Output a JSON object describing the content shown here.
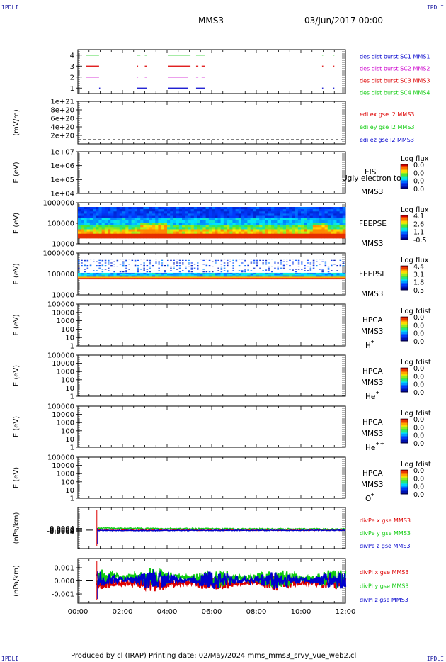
{
  "corner_label": "IPDLI",
  "header": {
    "spacecraft": "MMS3",
    "date": "03/Jun/2017 00:00"
  },
  "footer": {
    "text": "Produced by cl (IRAP)   Printing date: 02/May/2024   mms_mms3_srvy_vue_web2.cl"
  },
  "time_axis": {
    "range_hours": [
      0,
      12
    ],
    "tick_labels": [
      "00:00",
      "02:00",
      "04:00",
      "06:00",
      "08:00",
      "10:00",
      "12:00"
    ]
  },
  "colors": {
    "red": "#dd0000",
    "green": "#11cc11",
    "blue": "#0000cc",
    "magenta": "#cc00cc"
  },
  "chart_data": [
    {
      "type": "line",
      "panel": "burst_availability",
      "ylim": [
        0.5,
        4.5
      ],
      "yticks": [
        "1",
        "2",
        "3",
        "4"
      ],
      "legend": [
        {
          "text": "des dist burst SC1 MMS1",
          "color": "#0000cc"
        },
        {
          "text": "des dist burst SC2 MMS2",
          "color": "#cc00cc"
        },
        {
          "text": "des dist burst SC3 MMS3",
          "color": "#dd0000"
        },
        {
          "text": "des dist burst SC4 MMS4",
          "color": "#11cc11"
        }
      ],
      "series": [
        {
          "name": "des dist burst SC1 MMS1",
          "level": 1,
          "intervals": [
            [
              0.95,
              1.0
            ],
            [
              2.65,
              3.1
            ],
            [
              4.05,
              4.95
            ],
            [
              5.3,
              5.7
            ],
            [
              10.95,
              11.0
            ],
            [
              11.45,
              11.5
            ]
          ]
        },
        {
          "name": "des dist burst SC2 MMS2",
          "level": 2,
          "intervals": [
            [
              0.35,
              0.95
            ],
            [
              2.65,
              2.7
            ],
            [
              3.0,
              3.1
            ],
            [
              4.05,
              4.95
            ],
            [
              5.3,
              5.4
            ],
            [
              5.55,
              5.7
            ]
          ]
        },
        {
          "name": "des dist burst SC3 MMS3",
          "level": 3,
          "intervals": [
            [
              0.35,
              0.95
            ],
            [
              2.65,
              2.7
            ],
            [
              3.0,
              3.1
            ],
            [
              4.05,
              5.05
            ],
            [
              5.3,
              5.4
            ],
            [
              5.55,
              5.7
            ],
            [
              10.95,
              11.0
            ],
            [
              11.45,
              11.5
            ]
          ]
        },
        {
          "name": "des dist burst SC4 MMS4",
          "level": 4,
          "intervals": [
            [
              0.35,
              0.95
            ],
            [
              2.65,
              2.8
            ],
            [
              3.0,
              3.1
            ],
            [
              4.05,
              5.05
            ],
            [
              5.3,
              5.7
            ],
            [
              10.95,
              11.0
            ],
            [
              11.45,
              11.5
            ]
          ]
        }
      ]
    },
    {
      "type": "line",
      "panel": "edi_efield",
      "ylabel": "(mV/m)",
      "ylim": [
        0,
        1e+21
      ],
      "yticks": [
        "2e+20",
        "4e+20",
        "6e+20",
        "8e+20",
        "1e+21"
      ],
      "legend": [
        {
          "text": "edi ex gse l2 MMS3",
          "color": "#dd0000"
        },
        {
          "text": "edi ey gse l2 MMS3",
          "color": "#11cc11"
        },
        {
          "text": "edi ez gse l2 MMS3",
          "color": "#0000cc"
        }
      ],
      "series": [
        {
          "values": "flat near 0"
        }
      ]
    },
    {
      "type": "heatmap",
      "panel": "EIS",
      "ylabel": "E (eV)",
      "yscale": "log",
      "ylim": [
        10000.0,
        10000000.0
      ],
      "yticks": [
        "1e+04",
        "1e+05",
        "1e+06",
        "1e+07"
      ],
      "instrument": [
        "EIS",
        "MMS3"
      ],
      "overlay": "Ugly electron to",
      "colorbar": {
        "title": "Log flux",
        "ticks": [
          "0.0",
          "0.0",
          "0.0",
          "0.0"
        ]
      }
    },
    {
      "type": "heatmap",
      "panel": "FEEPSE",
      "ylabel": "E (eV)",
      "yscale": "log",
      "ylim": [
        10000.0,
        1000000.0
      ],
      "yticks": [
        "10000",
        "100000",
        "1000000"
      ],
      "instrument": [
        "FEEPSE",
        "MMS3"
      ],
      "colorbar": {
        "title": "Log flux",
        "ticks": [
          "4.1",
          "2.6",
          "1.1",
          "-0.5"
        ]
      }
    },
    {
      "type": "heatmap",
      "panel": "FEEPSI",
      "ylabel": "E (eV)",
      "yscale": "log",
      "ylim": [
        10000.0,
        1000000.0
      ],
      "yticks": [
        "10000",
        "100000",
        "1000000"
      ],
      "instrument": [
        "FEEPSI",
        "MMS3"
      ],
      "colorbar": {
        "title": "Log flux",
        "ticks": [
          "4.4",
          "3.1",
          "1.8",
          "0.5"
        ]
      }
    },
    {
      "type": "heatmap",
      "panel": "HPCA_H",
      "ylabel": "E (eV)",
      "yscale": "log",
      "ylim": [
        1,
        100000.0
      ],
      "yticks": [
        "1",
        "10",
        "100",
        "1000",
        "10000",
        "100000"
      ],
      "instrument": [
        "HPCA",
        "MMS3",
        "H",
        "+"
      ],
      "colorbar": {
        "title": "Log fdist",
        "ticks": [
          "0.0",
          "0.0",
          "0.0",
          "0.0"
        ]
      }
    },
    {
      "type": "heatmap",
      "panel": "HPCA_He",
      "ylabel": "E (eV)",
      "yscale": "log",
      "ylim": [
        1,
        100000.0
      ],
      "yticks": [
        "1",
        "10",
        "100",
        "1000",
        "10000",
        "100000"
      ],
      "instrument": [
        "HPCA",
        "MMS3",
        "He",
        "+"
      ],
      "colorbar": {
        "title": "Log fdist",
        "ticks": [
          "0.0",
          "0.0",
          "0.0",
          "0.0"
        ]
      }
    },
    {
      "type": "heatmap",
      "panel": "HPCA_He2",
      "ylabel": "E (eV)",
      "yscale": "log",
      "ylim": [
        1,
        100000.0
      ],
      "yticks": [
        "1",
        "10",
        "100",
        "1000",
        "10000",
        "100000"
      ],
      "instrument": [
        "HPCA",
        "MMS3",
        "He",
        "++"
      ],
      "colorbar": {
        "title": "Log fdist",
        "ticks": [
          "0.0",
          "0.0",
          "0.0",
          "0.0"
        ]
      }
    },
    {
      "type": "heatmap",
      "panel": "HPCA_O",
      "ylabel": "E (eV)",
      "yscale": "log",
      "ylim": [
        1,
        100000.0
      ],
      "yticks": [
        "1",
        "10",
        "100",
        "1000",
        "10000",
        "100000"
      ],
      "instrument": [
        "HPCA",
        "MMS3",
        "O",
        "+"
      ],
      "colorbar": {
        "title": "Log fdist",
        "ticks": [
          "0.0",
          "0.0",
          "0.0",
          "0.0"
        ]
      }
    },
    {
      "type": "line",
      "panel": "divPe",
      "ylabel": "(nPa/km)",
      "ylim": [
        -0.0045,
        0.0055
      ],
      "yticks": [
        "-0.0004",
        "-0.0002",
        "0.0000",
        "0.0002",
        "0.0004"
      ],
      "legend": [
        {
          "text": "divPe x gse MMS3",
          "color": "#dd0000"
        },
        {
          "text": "divPe y gse MMS3",
          "color": "#11cc11"
        },
        {
          "text": "divPe z gse MMS3",
          "color": "#0000cc"
        }
      ],
      "series": [
        {
          "name": "divPe x gse MMS3",
          "start": 0.85,
          "offset": 0.0,
          "noise": 0.00012
        },
        {
          "name": "divPe y gse MMS3",
          "start": 0.85,
          "offset": 0.00045,
          "noise": 0.00015
        },
        {
          "name": "divPe z gse MMS3",
          "start": 0.85,
          "offset": -0.0001,
          "noise": 0.0001
        }
      ]
    },
    {
      "type": "line",
      "panel": "divPi",
      "ylabel": "(nPa/km)",
      "ylim": [
        -0.0017,
        0.0017
      ],
      "yticks": [
        "-0.001",
        "0.000",
        "0.001"
      ],
      "legend": [
        {
          "text": "divPi x gse MMS3",
          "color": "#dd0000"
        },
        {
          "text": "divPi y gse MMS3",
          "color": "#11cc11"
        },
        {
          "text": "divPi z gse MMS3",
          "color": "#0000cc"
        }
      ],
      "series": [
        {
          "name": "divPi x gse MMS3",
          "start": 0.85,
          "offset": -0.0002,
          "noise": 0.0004
        },
        {
          "name": "divPi y gse MMS3",
          "start": 0.85,
          "offset": 0.0003,
          "noise": 0.00045
        },
        {
          "name": "divPi z gse MMS3",
          "start": 0.85,
          "offset": 0.0001,
          "noise": 0.00045
        }
      ]
    }
  ]
}
